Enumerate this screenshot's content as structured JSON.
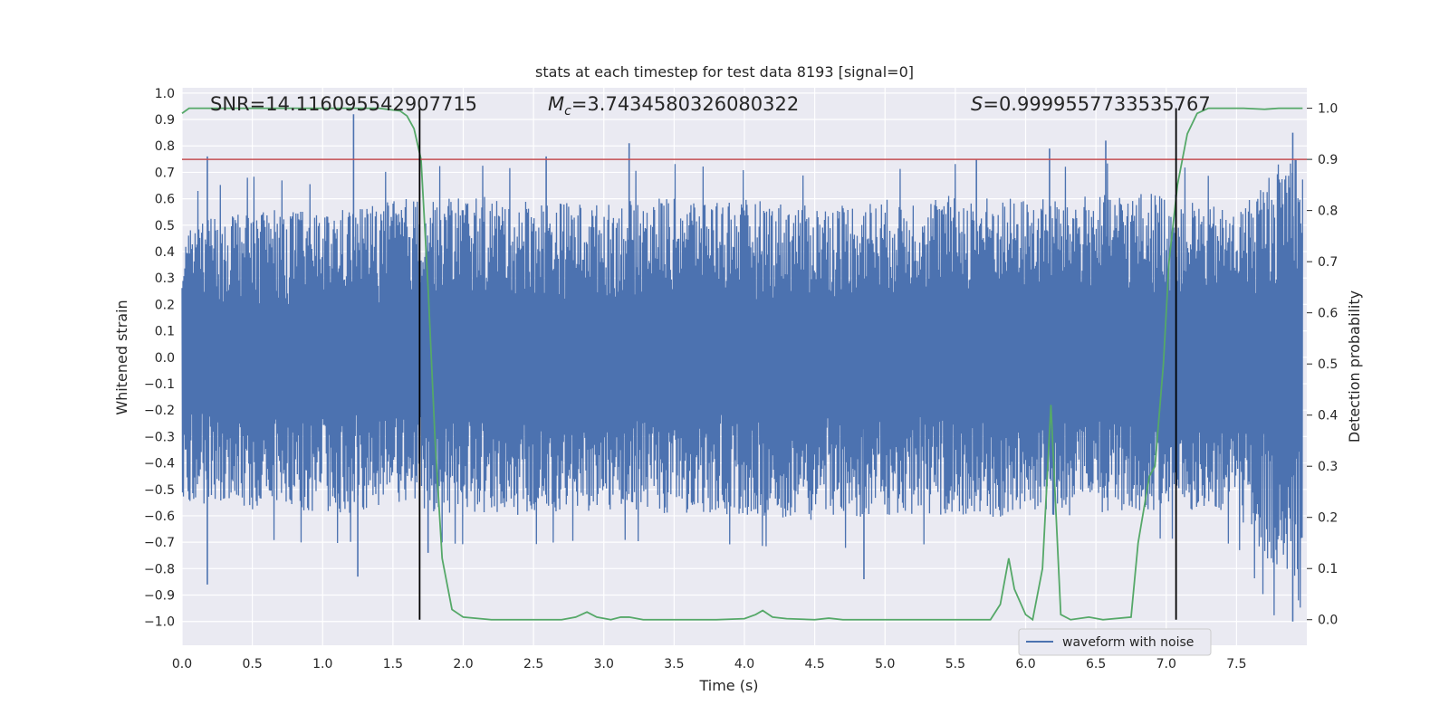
{
  "chart_data": {
    "type": "line",
    "title": "stats at each timestep for test data 8193 [signal=0]",
    "xlabel": "Time (s)",
    "ylabel_left": "Whitened strain",
    "ylabel_right": "Detection probability",
    "xlim": [
      0.0,
      8.0
    ],
    "ylim_left": [
      -1.09,
      1.02
    ],
    "ylim_right": [
      -0.05,
      1.04
    ],
    "x_ticks": [
      "0.0",
      "0.5",
      "1.0",
      "1.5",
      "2.0",
      "2.5",
      "3.0",
      "3.5",
      "4.0",
      "4.5",
      "5.0",
      "5.5",
      "6.0",
      "6.5",
      "7.0",
      "7.5"
    ],
    "y_left_ticks": [
      "1.0",
      "0.9",
      "0.8",
      "0.7",
      "0.6",
      "0.5",
      "0.4",
      "0.3",
      "0.2",
      "0.1",
      "0.0",
      "−0.1",
      "−0.2",
      "−0.3",
      "−0.4",
      "−0.5",
      "−0.6",
      "−0.7",
      "−0.8",
      "−0.9",
      "−1.0"
    ],
    "y_right_ticks": [
      "1.0",
      "0.9",
      "0.8",
      "0.7",
      "0.6",
      "0.5",
      "0.4",
      "0.3",
      "0.2",
      "0.1",
      "0.0"
    ],
    "annotations": {
      "snr": "SNR=14.116095542907715",
      "mc_symbol": "M",
      "mc_subscript": "c",
      "mc_value": "=3.7434580326080322",
      "s_symbol": "S",
      "s_value": "=0.9999557733535767"
    },
    "threshold_right": 0.9,
    "vertical_lines_x": [
      1.69,
      7.07
    ],
    "legend": [
      "waveform with noise"
    ],
    "grid": true,
    "colors": {
      "background": "#eaeaf2",
      "grid": "#ffffff",
      "waveform": "#4c72b0",
      "probability": "#55a868",
      "threshold": "#c44e52",
      "vline": "#000000",
      "text": "#262626"
    },
    "waveform_envelope": {
      "x": [
        0.0,
        0.5,
        1.0,
        1.5,
        2.0,
        2.5,
        3.0,
        3.5,
        4.0,
        4.5,
        5.0,
        5.5,
        6.0,
        6.5,
        7.0,
        7.5,
        7.97
      ],
      "upper": [
        0.52,
        0.58,
        0.55,
        0.6,
        0.62,
        0.6,
        0.58,
        0.62,
        0.6,
        0.58,
        0.6,
        0.62,
        0.6,
        0.62,
        0.63,
        0.55,
        0.85
      ],
      "lower": [
        -0.55,
        -0.58,
        -0.6,
        -0.58,
        -0.6,
        -0.6,
        -0.58,
        -0.6,
        -0.6,
        -0.62,
        -0.6,
        -0.6,
        -0.62,
        -0.6,
        -0.58,
        -0.6,
        -1.0
      ],
      "spikes": [
        [
          0.18,
          0.76
        ],
        [
          1.22,
          0.92
        ],
        [
          2.59,
          0.76
        ],
        [
          3.18,
          0.81
        ],
        [
          5.65,
          0.75
        ],
        [
          6.17,
          0.79
        ],
        [
          6.57,
          0.82
        ],
        [
          7.9,
          0.85
        ],
        [
          0.18,
          -0.86
        ],
        [
          1.25,
          -0.83
        ],
        [
          1.75,
          -0.74
        ],
        [
          4.85,
          -0.84
        ],
        [
          7.9,
          -1.0
        ]
      ]
    },
    "probability_series": {
      "x": [
        0.0,
        0.05,
        0.1,
        0.2,
        0.4,
        0.6,
        0.8,
        1.0,
        1.2,
        1.4,
        1.55,
        1.6,
        1.65,
        1.7,
        1.75,
        1.8,
        1.85,
        1.92,
        2.0,
        2.2,
        2.5,
        2.7,
        2.8,
        2.88,
        2.95,
        3.05,
        3.12,
        3.18,
        3.28,
        3.5,
        3.8,
        4.0,
        4.08,
        4.13,
        4.2,
        4.3,
        4.5,
        4.6,
        4.7,
        5.0,
        5.5,
        5.75,
        5.82,
        5.88,
        5.92,
        6.0,
        6.05,
        6.12,
        6.18,
        6.25,
        6.32,
        6.45,
        6.55,
        6.75,
        6.8,
        6.88,
        6.92,
        6.98,
        7.02,
        7.08,
        7.15,
        7.22,
        7.3,
        7.45,
        7.55,
        7.7,
        7.8,
        7.97
      ],
      "y": [
        0.99,
        1.0,
        1.0,
        1.0,
        1.0,
        1.0,
        1.0,
        1.0,
        1.0,
        1.0,
        0.995,
        0.985,
        0.96,
        0.9,
        0.65,
        0.35,
        0.12,
        0.02,
        0.005,
        0.0,
        0.0,
        0.0,
        0.005,
        0.015,
        0.005,
        0.0,
        0.005,
        0.005,
        0.0,
        0.0,
        0.0,
        0.002,
        0.01,
        0.018,
        0.005,
        0.002,
        0.0,
        0.003,
        0.0,
        0.0,
        0.0,
        0.0,
        0.03,
        0.12,
        0.06,
        0.01,
        0.0,
        0.1,
        0.42,
        0.01,
        0.0,
        0.005,
        0.0,
        0.005,
        0.15,
        0.28,
        0.3,
        0.5,
        0.7,
        0.85,
        0.95,
        0.99,
        1.0,
        1.0,
        1.0,
        0.998,
        1.0,
        1.0
      ]
    }
  }
}
